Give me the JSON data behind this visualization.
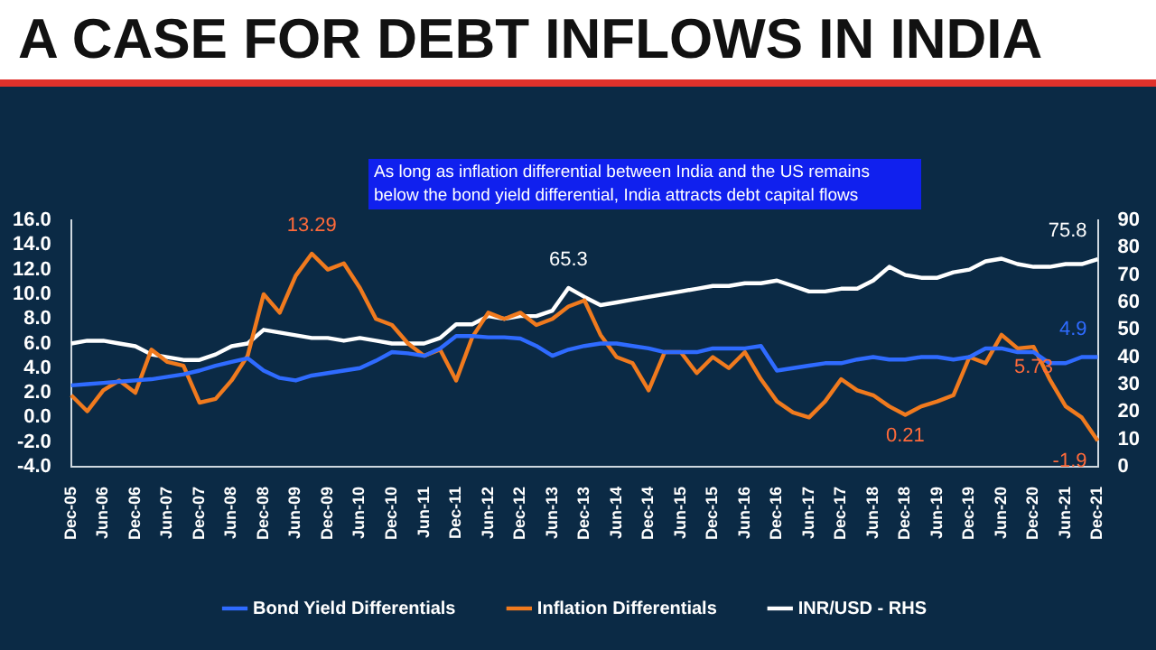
{
  "chart_data": {
    "type": "line",
    "title": "A CASE FOR DEBT INFLOWS IN INDIA",
    "annotations": [
      "As long as inflation differential between India and the US remains below the bond yield differential, India attracts debt capital flows"
    ],
    "categories": [
      "Dec-05",
      null,
      "Jun-06",
      null,
      "Dec-06",
      null,
      "Jun-07",
      null,
      "Dec-07",
      null,
      "Jun-08",
      null,
      "Dec-08",
      null,
      "Jun-09",
      null,
      "Dec-09",
      null,
      "Jun-10",
      null,
      "Dec-10",
      null,
      "Jun-11",
      null,
      "Dec-11",
      null,
      "Jun-12",
      null,
      "Dec-12",
      null,
      "Jun-13",
      null,
      "Dec-13",
      null,
      "Jun-14",
      null,
      "Dec-14",
      null,
      "Jun-15",
      null,
      "Dec-15",
      null,
      "Jun-16",
      null,
      "Dec-16",
      null,
      "Jun-17",
      null,
      "Dec-17",
      null,
      "Jun-18",
      null,
      "Dec-18",
      null,
      "Jun-19",
      null,
      "Dec-19",
      null,
      "Jun-20",
      null,
      "Dec-20",
      null,
      "Jun-21",
      null,
      "Dec-21"
    ],
    "series": [
      {
        "name": "Bond Yield Differentials",
        "color": "#2f6bff",
        "values": [
          2.6,
          2.7,
          2.8,
          2.9,
          3.0,
          3.1,
          3.3,
          3.5,
          3.8,
          4.2,
          4.5,
          4.8,
          3.8,
          3.2,
          3.0,
          3.4,
          3.6,
          3.8,
          4.0,
          4.6,
          5.3,
          5.2,
          5.0,
          5.6,
          6.6,
          6.6,
          6.5,
          6.5,
          6.4,
          5.8,
          5.0,
          5.5,
          5.8,
          6.0,
          6.0,
          5.8,
          5.6,
          5.3,
          5.3,
          5.3,
          5.6,
          5.6,
          5.6,
          5.8,
          3.8,
          4.0,
          4.2,
          4.4,
          4.4,
          4.7,
          4.9,
          4.7,
          4.7,
          4.9,
          4.9,
          4.7,
          4.9,
          5.6,
          5.6,
          5.3,
          5.3,
          4.4,
          4.4,
          4.9,
          4.9
        ],
        "value_labels": [
          null,
          null,
          null,
          null,
          null,
          null,
          null,
          null,
          null,
          null,
          null,
          null,
          null,
          null,
          null,
          null,
          null,
          null,
          null,
          null,
          null,
          null,
          null,
          null,
          null,
          null,
          null,
          null,
          null,
          null,
          null,
          null,
          null,
          null,
          null,
          null,
          null,
          null,
          null,
          null,
          null,
          null,
          null,
          null,
          null,
          null,
          null,
          null,
          null,
          null,
          null,
          null,
          null,
          null,
          null,
          null,
          null,
          null,
          null,
          null,
          null,
          null,
          null,
          null,
          "4.9"
        ]
      },
      {
        "name": "Inflation Differentials",
        "color": "#f07a1e",
        "values": [
          1.8,
          0.5,
          2.2,
          3.0,
          2.0,
          5.5,
          4.5,
          4.2,
          1.2,
          1.5,
          3.0,
          5.0,
          10.0,
          8.5,
          11.5,
          13.29,
          12.0,
          12.5,
          10.5,
          8.0,
          7.5,
          6.0,
          5.0,
          5.5,
          3.0,
          6.5,
          8.5,
          8.0,
          8.5,
          7.5,
          8.0,
          9.0,
          9.5,
          6.7,
          4.9,
          4.4,
          2.2,
          5.3,
          5.3,
          3.6,
          4.9,
          4.0,
          5.3,
          3.1,
          1.3,
          0.4,
          0.0,
          1.3,
          3.1,
          2.2,
          1.8,
          0.9,
          0.21,
          0.9,
          1.3,
          1.8,
          4.9,
          4.4,
          6.7,
          5.6,
          5.73,
          3.1,
          0.9,
          0.0,
          -1.9
        ],
        "value_labels": [
          null,
          null,
          null,
          null,
          null,
          null,
          null,
          null,
          null,
          null,
          null,
          null,
          null,
          null,
          null,
          "13.29",
          null,
          null,
          null,
          null,
          null,
          null,
          null,
          null,
          null,
          null,
          null,
          null,
          null,
          null,
          null,
          null,
          null,
          null,
          null,
          null,
          null,
          null,
          null,
          null,
          null,
          null,
          null,
          null,
          null,
          null,
          null,
          null,
          null,
          null,
          null,
          null,
          "0.21",
          null,
          null,
          null,
          null,
          null,
          null,
          null,
          "5.73",
          null,
          null,
          null,
          "-1.9"
        ]
      },
      {
        "name": "INR/USD - RHS",
        "color": "#ffffff",
        "axis": "y2",
        "values": [
          45,
          46,
          46,
          45,
          44,
          41,
          40,
          39,
          39,
          41,
          44,
          45,
          50,
          49,
          48,
          47,
          47,
          46,
          47,
          46,
          45,
          45,
          45,
          47,
          52,
          52,
          55,
          54,
          55,
          55,
          57,
          65.3,
          62,
          59,
          60,
          61,
          62,
          63,
          64,
          65,
          66,
          66,
          67,
          67,
          68,
          66,
          64,
          64,
          65,
          65,
          68,
          73,
          70,
          69,
          69,
          71,
          72,
          75,
          76,
          74,
          73,
          73,
          74,
          74,
          75.8
        ],
        "value_labels": [
          null,
          null,
          null,
          null,
          null,
          null,
          null,
          null,
          null,
          null,
          null,
          null,
          null,
          null,
          null,
          null,
          null,
          null,
          null,
          null,
          null,
          null,
          null,
          null,
          null,
          null,
          null,
          null,
          null,
          null,
          null,
          "65.3",
          null,
          null,
          null,
          null,
          null,
          null,
          null,
          null,
          null,
          null,
          null,
          null,
          null,
          null,
          null,
          null,
          null,
          null,
          null,
          null,
          null,
          null,
          null,
          null,
          null,
          null,
          null,
          null,
          null,
          null,
          null,
          null,
          "75.8"
        ]
      }
    ],
    "ylim": [
      -4,
      16
    ],
    "yticks": [
      {
        "value": -4,
        "label": "-4.0"
      },
      {
        "value": -2,
        "label": "-2.0"
      },
      {
        "value": 0,
        "label": "0.0"
      },
      {
        "value": 2,
        "label": "2.0"
      },
      {
        "value": 4,
        "label": "4.0"
      },
      {
        "value": 6,
        "label": "6.0"
      },
      {
        "value": 8,
        "label": "8.0"
      },
      {
        "value": 10,
        "label": "10.0"
      },
      {
        "value": 12,
        "label": "12.0"
      },
      {
        "value": 14,
        "label": "14.0"
      },
      {
        "value": 16,
        "label": "16.0"
      }
    ],
    "y2lim": [
      0,
      90
    ],
    "y2ticks": [
      0,
      10,
      20,
      30,
      40,
      50,
      60,
      70,
      80,
      90
    ],
    "legend": "bottom"
  }
}
